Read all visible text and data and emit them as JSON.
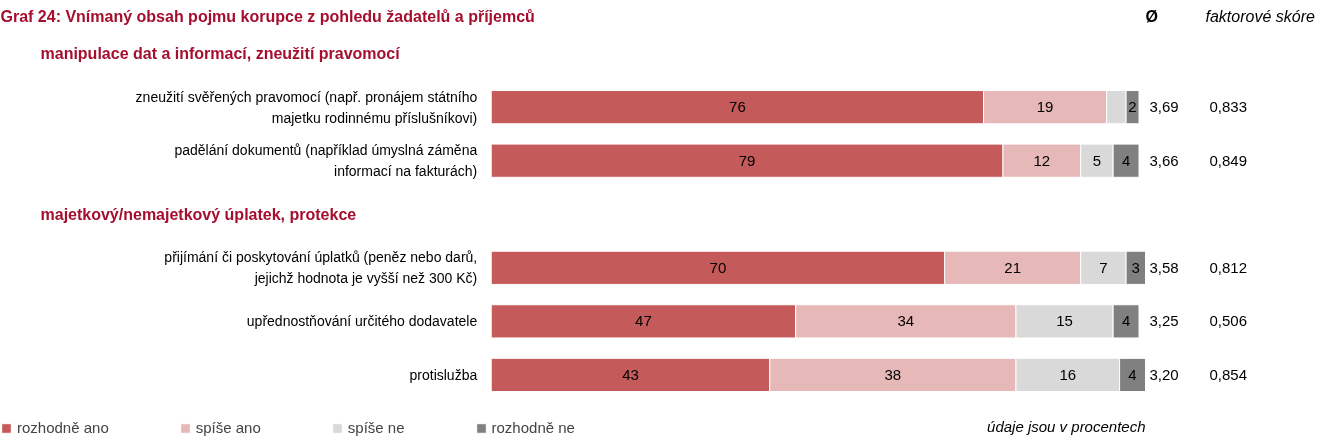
{
  "chart_data": [
    {
      "type": "bar",
      "orientation": "horizontal",
      "stacked": true,
      "title": "Graf 24: Vnímaný obsah pojmu korupce z pohledu žadatelů a příjemců",
      "categories": [
        "manipulace dat a informací, zneužití pravomocí",
        "zneužití svěřených pravomocí (např. pronájem státního\nmajetku rodinnému příslušníkovi)",
        "padělání dokumentů (například úmyslná záměna\ninformací na fakturách)",
        "majetkový/nemajetkový úplatek, protekce",
        "přijímání či poskytování úplatků (peněz nebo darů,\njejichž hodnota je vyšší než 300 Kč)",
        "upřednostňování určitého dodavatele",
        "protislužba"
      ],
      "series": [
        {
          "name": "rozhodně ano",
          "color": "#c55a5a",
          "values": [
            null,
            76,
            79,
            null,
            70,
            47,
            43
          ]
        },
        {
          "name": "spíše ano",
          "color": "#e6b8b7",
          "values": [
            null,
            19,
            12,
            null,
            21,
            34,
            38
          ]
        },
        {
          "name": "spíše ne",
          "color": "#d9d9d9",
          "values": [
            null,
            3,
            5,
            null,
            7,
            15,
            16
          ],
          "value_labels": [
            null,
            null,
            "5",
            null,
            "7",
            "15",
            "16"
          ]
        },
        {
          "name": "rozhodně ne",
          "color": "#808080",
          "values": [
            null,
            2,
            4,
            null,
            3,
            4,
            4
          ]
        }
      ],
      "data_labels": true,
      "legend": "bottom",
      "xlim": [
        0,
        101
      ],
      "tick_labels": false,
      "grid": false,
      "annotations": [
        "údaje jsou v procentech"
      ]
    },
    {
      "type": "other",
      "title": "Ø",
      "categories": [
        null,
        null,
        null,
        null,
        null,
        null,
        null
      ],
      "value_labels": [
        null,
        "3,69",
        "3,66",
        null,
        "3,58",
        "3,25",
        "3,20"
      ]
    },
    {
      "type": "other",
      "title": "faktorové skóre",
      "categories": [
        null,
        null,
        null,
        null,
        null,
        null,
        null
      ],
      "value_labels": [
        null,
        "0,833",
        "0,849",
        null,
        "0,812",
        "0,506",
        "0,854"
      ]
    }
  ]
}
